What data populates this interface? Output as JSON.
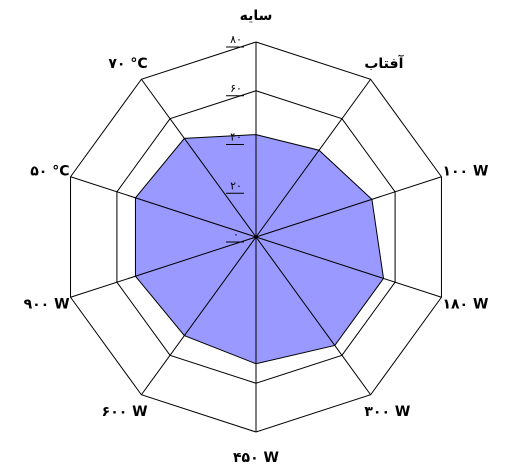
{
  "chart_data": {
    "type": "radar",
    "categories": [
      "سایه",
      "آفتاب",
      "۱۰۰ W",
      "۱۸۰ W",
      "۳۰۰ W",
      "۴۵۰ W",
      "۶۰۰ W",
      "۹۰۰ W",
      "۵۰ °C",
      "۷۰ °C"
    ],
    "series": [
      {
        "values": [
          42,
          44,
          50,
          55,
          55,
          52,
          50,
          52,
          52,
          50
        ],
        "color": "#9999ff"
      }
    ],
    "r_ticks": [
      0,
      20,
      40,
      60,
      80
    ],
    "r_tick_labels": [
      "۰",
      "۲۰",
      "۴۰",
      "۶۰",
      "۸۰"
    ],
    "rlim": [
      0,
      80
    ],
    "grid": true,
    "legend": false
  }
}
